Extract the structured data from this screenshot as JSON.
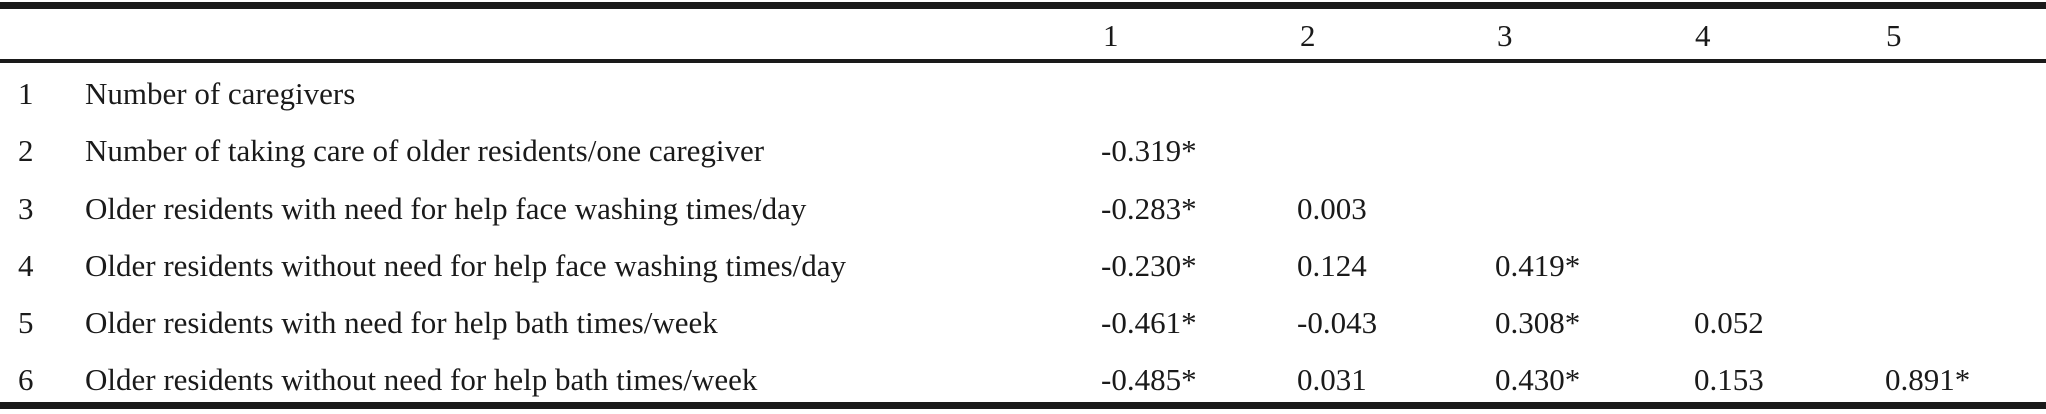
{
  "table": {
    "columns": [
      "1",
      "2",
      "3",
      "4",
      "5"
    ],
    "rows": [
      {
        "num": "1",
        "label": "Number of caregivers",
        "values": []
      },
      {
        "num": "2",
        "label": "Number of taking care of older residents/one caregiver",
        "values": [
          "-0.319*"
        ]
      },
      {
        "num": "3",
        "label": "Older residents with need for help face washing times/day",
        "values": [
          "-0.283*",
          "0.003"
        ]
      },
      {
        "num": "4",
        "label": "Older residents without need for help face washing times/day",
        "values": [
          "-0.230*",
          "0.124",
          "0.419*"
        ]
      },
      {
        "num": "5",
        "label": "Older residents with need for help bath times/week",
        "values": [
          "-0.461*",
          "-0.043",
          "0.308*",
          "0.052"
        ]
      },
      {
        "num": "6",
        "label": "Older residents without need for help bath times/week",
        "values": [
          "-0.485*",
          "0.031",
          "0.430*",
          "0.153",
          "0.891*"
        ]
      }
    ]
  }
}
